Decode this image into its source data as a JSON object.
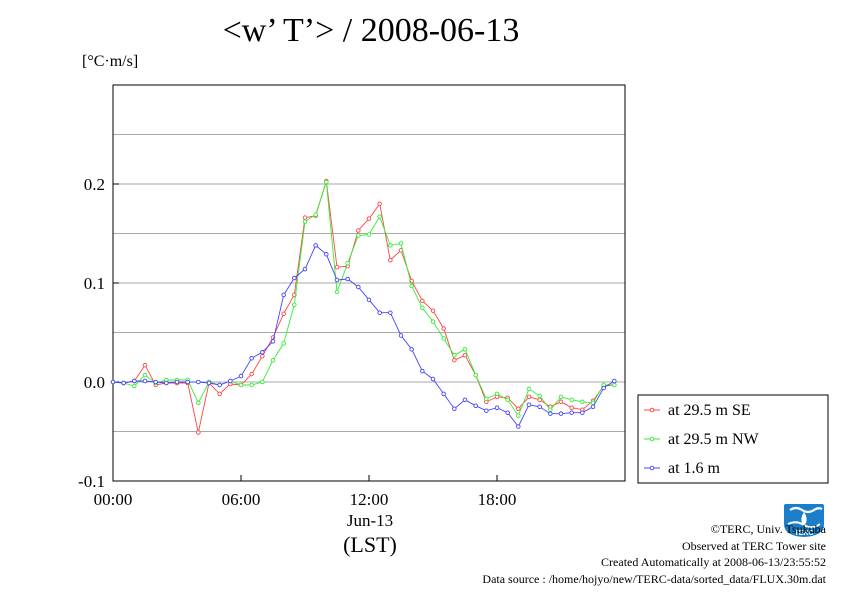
{
  "title": "<w’ T’> / 2008-06-13",
  "unit_label": "[°C·m/s]",
  "x_date_label": "Jun-13",
  "x_unit_label": "(LST)",
  "footer": {
    "copyright": "©TERC, Univ. Tsukuba",
    "observed": "Observed at TERC Tower site",
    "created": "Created Automatically at 2008-06-13/23:55:52",
    "source": "Data source : /home/hojyo/new/TERC-data/sorted_data/FLUX.30m.dat"
  },
  "logo_text": "TERC",
  "colors": {
    "series_se": "#ff4444",
    "series_nw": "#33ee33",
    "series_low": "#4444ff",
    "grid": "#aaaaaa",
    "logo": "#1a7fc8"
  },
  "chart_data": {
    "type": "line",
    "title": "<w’ T’> / 2008-06-13",
    "ylabel": "[°C·m/s]",
    "xlabel": "Jun-13 (LST)",
    "xlim": [
      0,
      24
    ],
    "ylim": [
      -0.1,
      0.3
    ],
    "grid": true,
    "legend_position": "right",
    "x_ticks": [
      {
        "value": 0,
        "label": "00:00"
      },
      {
        "value": 6,
        "label": "06:00"
      },
      {
        "value": 12,
        "label": "12:00"
      },
      {
        "value": 18,
        "label": "18:00"
      }
    ],
    "y_ticks": [
      {
        "value": -0.1,
        "label": "-0.1"
      },
      {
        "value": 0.0,
        "label": "0.0"
      },
      {
        "value": 0.1,
        "label": "0.1"
      },
      {
        "value": 0.2,
        "label": "0.2"
      }
    ],
    "y_grid": [
      -0.05,
      0.0,
      0.05,
      0.1,
      0.15,
      0.2,
      0.25
    ],
    "x": [
      0.0,
      0.5,
      1.0,
      1.5,
      2.0,
      2.5,
      3.0,
      3.5,
      4.0,
      4.5,
      5.0,
      5.5,
      6.0,
      6.5,
      7.0,
      7.5,
      8.0,
      8.5,
      9.0,
      9.5,
      10.0,
      10.5,
      11.0,
      11.5,
      12.0,
      12.5,
      13.0,
      13.5,
      14.0,
      14.5,
      15.0,
      15.5,
      16.0,
      16.5,
      17.0,
      17.5,
      18.0,
      18.5,
      19.0,
      19.5,
      20.0,
      20.5,
      21.0,
      21.5,
      22.0,
      22.5,
      23.0,
      23.5
    ],
    "series": [
      {
        "name": "at 29.5 m SE",
        "color": "#ff4444",
        "values": [
          0.0,
          -0.001,
          0.001,
          0.017,
          -0.003,
          -0.001,
          -0.001,
          -0.001,
          -0.051,
          -0.001,
          -0.012,
          -0.002,
          -0.003,
          0.008,
          0.026,
          0.045,
          0.069,
          0.088,
          0.166,
          0.168,
          0.203,
          0.116,
          0.117,
          0.153,
          0.165,
          0.18,
          0.123,
          0.133,
          0.102,
          0.082,
          0.072,
          0.054,
          0.022,
          0.027,
          0.007,
          -0.02,
          -0.015,
          -0.016,
          -0.027,
          -0.015,
          -0.018,
          -0.025,
          -0.02,
          -0.026,
          -0.028,
          -0.019,
          -0.004,
          -0.003
        ]
      },
      {
        "name": "at 29.5 m NW",
        "color": "#33ee33",
        "values": [
          0.0,
          -0.001,
          -0.004,
          0.007,
          -0.001,
          0.002,
          0.002,
          0.002,
          -0.021,
          0.0,
          -0.003,
          0.001,
          -0.003,
          -0.003,
          0.0,
          0.022,
          0.039,
          0.078,
          0.162,
          0.169,
          0.202,
          0.091,
          0.12,
          0.148,
          0.149,
          0.167,
          0.138,
          0.14,
          0.097,
          0.075,
          0.061,
          0.044,
          0.027,
          0.033,
          0.007,
          -0.017,
          -0.012,
          -0.018,
          -0.034,
          -0.007,
          -0.014,
          -0.028,
          -0.015,
          -0.018,
          -0.02,
          -0.021,
          -0.003,
          -0.003
        ]
      },
      {
        "name": "at 1.6 m",
        "color": "#4444ff",
        "values": [
          0.0,
          -0.001,
          0.001,
          0.001,
          0.0,
          -0.001,
          0.0,
          0.0,
          0.0,
          -0.001,
          -0.003,
          0.001,
          0.006,
          0.024,
          0.03,
          0.041,
          0.088,
          0.105,
          0.114,
          0.138,
          0.129,
          0.103,
          0.104,
          0.096,
          0.083,
          0.07,
          0.07,
          0.047,
          0.033,
          0.011,
          0.003,
          -0.012,
          -0.027,
          -0.018,
          -0.024,
          -0.029,
          -0.026,
          -0.031,
          -0.045,
          -0.023,
          -0.025,
          -0.032,
          -0.032,
          -0.031,
          -0.031,
          -0.025,
          -0.006,
          0.001
        ]
      }
    ]
  }
}
